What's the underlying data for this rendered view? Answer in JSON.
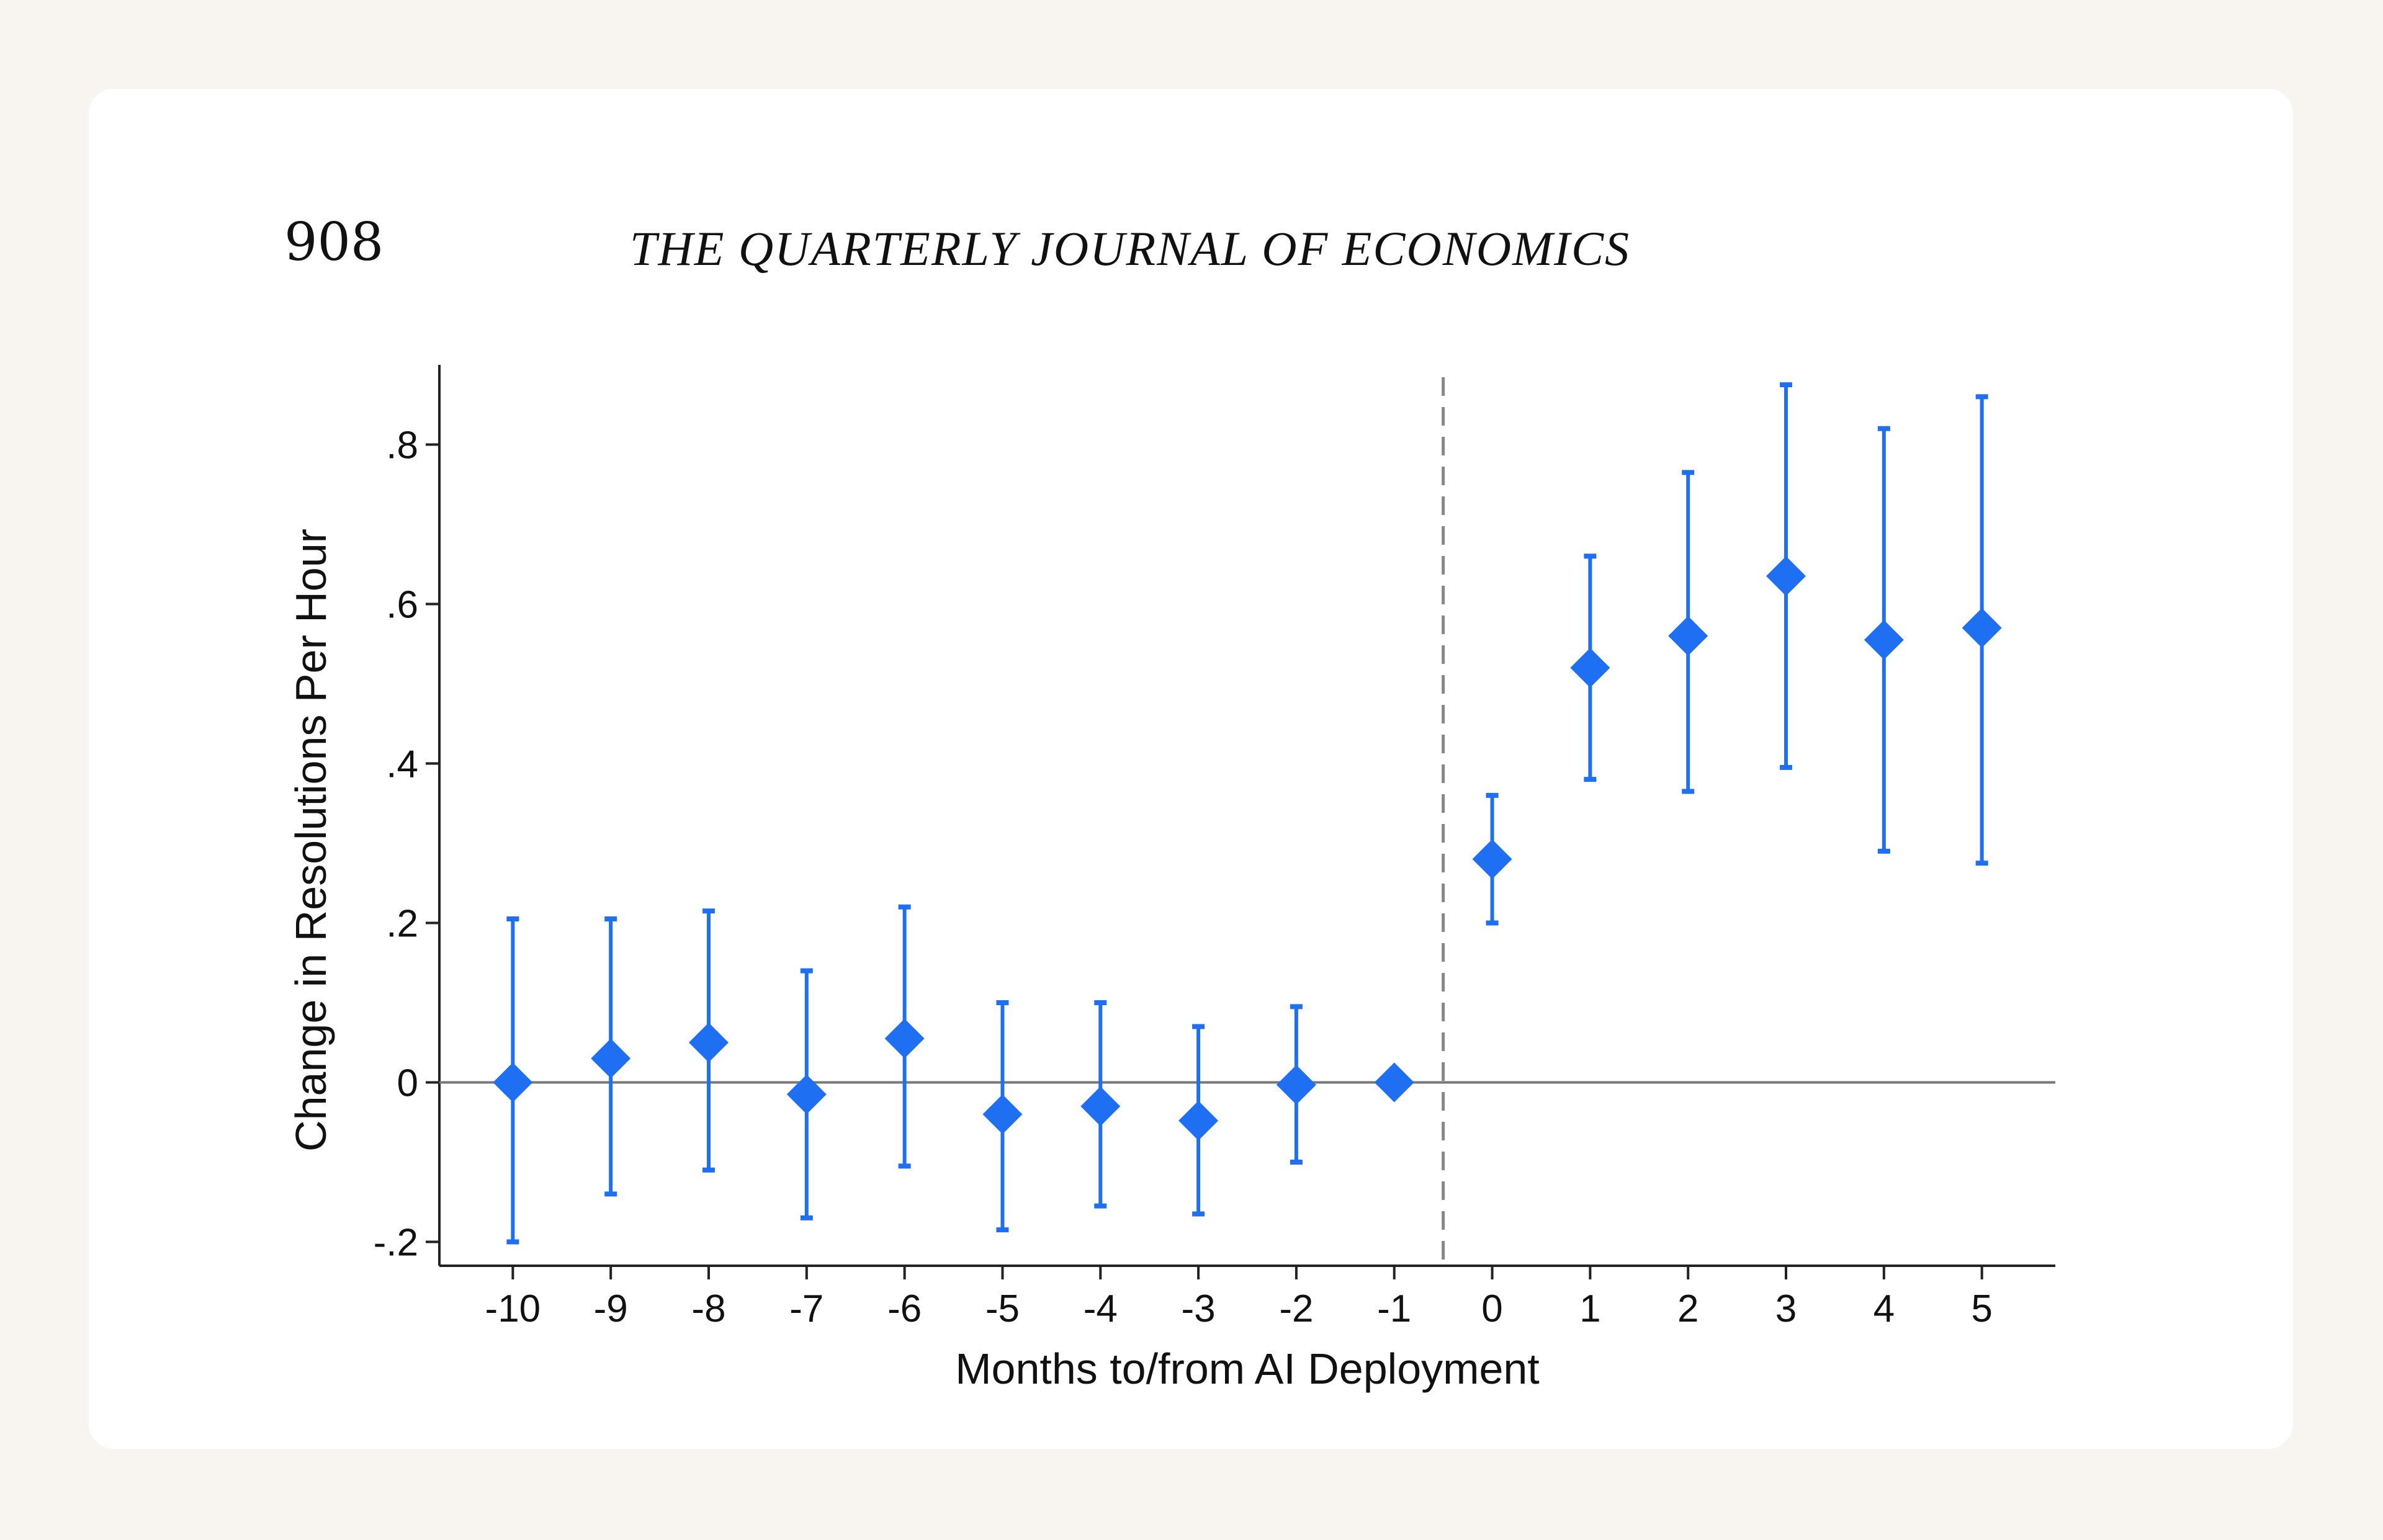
{
  "page": {
    "page_number": "908",
    "journal_title": "THE QUARTERLY JOURNAL OF ECONOMICS",
    "background_color": "#f8f4ef",
    "card_color": "#ffffff"
  },
  "chart_data": {
    "type": "scatter",
    "subtype": "event-study coefficient plot with 95% confidence intervals",
    "title": "",
    "xlabel": "Months to/from AI Deployment",
    "ylabel": "Change in Resolutions Per Hour",
    "x_tick_labels": [
      "-10",
      "-9",
      "-8",
      "-7",
      "-6",
      "-5",
      "-4",
      "-3",
      "-2",
      "-1",
      "0",
      "1",
      "2",
      "3",
      "4",
      "5"
    ],
    "y_tick_values": [
      -0.2,
      0,
      0.2,
      0.4,
      0.6,
      0.8
    ],
    "y_tick_labels": [
      "-.2",
      "0",
      ".2",
      ".4",
      ".6",
      ".8"
    ],
    "ylim": [
      -0.23,
      0.9
    ],
    "xlim": [
      -10.75,
      5.75
    ],
    "reference_line_y": 0,
    "deployment_line_x": -0.5,
    "marker": "diamond",
    "color": "#1f6ff2",
    "grid": false,
    "series": [
      {
        "name": "Change in Resolutions Per Hour",
        "points": [
          {
            "x": -10,
            "y": 0.0,
            "ci_low": -0.2,
            "ci_high": 0.205
          },
          {
            "x": -9,
            "y": 0.03,
            "ci_low": -0.14,
            "ci_high": 0.205
          },
          {
            "x": -8,
            "y": 0.05,
            "ci_low": -0.11,
            "ci_high": 0.215
          },
          {
            "x": -7,
            "y": -0.015,
            "ci_low": -0.17,
            "ci_high": 0.14
          },
          {
            "x": -6,
            "y": 0.055,
            "ci_low": -0.105,
            "ci_high": 0.22
          },
          {
            "x": -5,
            "y": -0.04,
            "ci_low": -0.185,
            "ci_high": 0.1
          },
          {
            "x": -4,
            "y": -0.03,
            "ci_low": -0.155,
            "ci_high": 0.1
          },
          {
            "x": -3,
            "y": -0.048,
            "ci_low": -0.165,
            "ci_high": 0.07
          },
          {
            "x": -2,
            "y": -0.003,
            "ci_low": -0.1,
            "ci_high": 0.095
          },
          {
            "x": -1,
            "y": 0.0,
            "ci_low": null,
            "ci_high": null
          },
          {
            "x": 0,
            "y": 0.28,
            "ci_low": 0.2,
            "ci_high": 0.36
          },
          {
            "x": 1,
            "y": 0.52,
            "ci_low": 0.38,
            "ci_high": 0.66
          },
          {
            "x": 2,
            "y": 0.56,
            "ci_low": 0.365,
            "ci_high": 0.765
          },
          {
            "x": 3,
            "y": 0.635,
            "ci_low": 0.395,
            "ci_high": 0.875
          },
          {
            "x": 4,
            "y": 0.555,
            "ci_low": 0.29,
            "ci_high": 0.82
          },
          {
            "x": 5,
            "y": 0.57,
            "ci_low": 0.275,
            "ci_high": 0.86
          }
        ]
      }
    ]
  }
}
